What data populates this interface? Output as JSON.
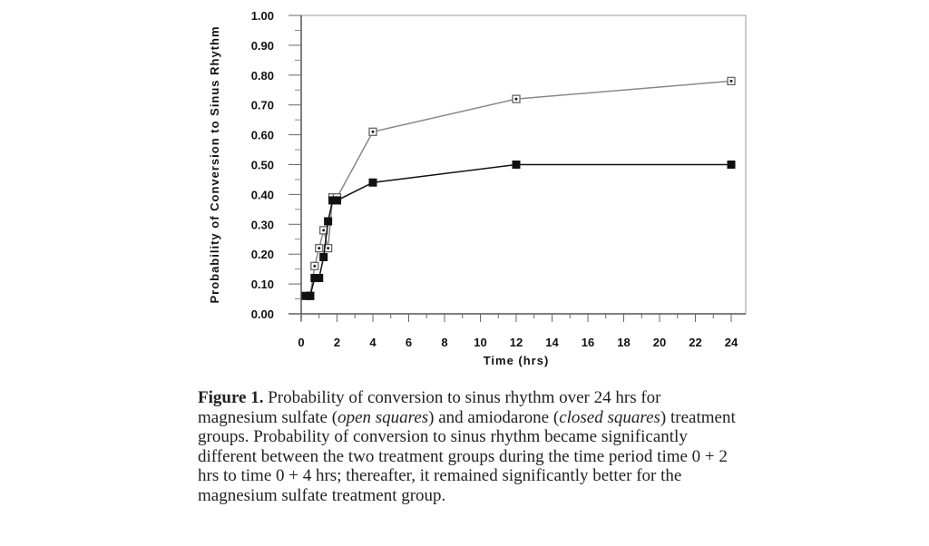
{
  "chart_data": {
    "type": "line",
    "xlabel": "Time (hrs)",
    "ylabel": "Probability of Conversion to Sinus Rhythm",
    "xlim": [
      0,
      24
    ],
    "ylim": [
      0,
      1
    ],
    "xticks": [
      0,
      2,
      4,
      6,
      8,
      10,
      12,
      14,
      16,
      18,
      20,
      22,
      24
    ],
    "yticks": [
      "0.00",
      "0.10",
      "0.20",
      "0.30",
      "0.40",
      "0.50",
      "0.60",
      "0.70",
      "0.80",
      "0.90",
      "1.00"
    ],
    "grid": false,
    "series": [
      {
        "marker": "open-square",
        "color": "#888888",
        "x": [
          0.5,
          0.75,
          1,
          1.25,
          1.5,
          1.75,
          2,
          4,
          12,
          24
        ],
        "y": [
          0.06,
          0.16,
          0.22,
          0.28,
          0.22,
          0.39,
          0.39,
          0.61,
          0.72,
          0.78
        ]
      },
      {
        "marker": "closed-square",
        "color": "#111111",
        "x": [
          0.25,
          0.5,
          0.75,
          1,
          1.25,
          1.5,
          1.75,
          2,
          4,
          12,
          24
        ],
        "y": [
          0.06,
          0.06,
          0.12,
          0.12,
          0.19,
          0.31,
          0.38,
          0.38,
          0.44,
          0.5,
          0.5
        ]
      }
    ]
  },
  "caption": {
    "label": "Figure 1.",
    "text_1": " Probability of conversion to sinus rhythm over 24 hrs for magnesium sulfate (",
    "open": "open squares",
    "text_2": ") and amiodarone (",
    "closed": "closed squares",
    "text_3": ") treatment groups. Probability of conversion to sinus rhythm became significantly different between the two treatment groups during the time period time 0 + 2 hrs to time 0 + 4 hrs; thereafter, it remained significantly better for the magnesium sulfate treatment group."
  }
}
